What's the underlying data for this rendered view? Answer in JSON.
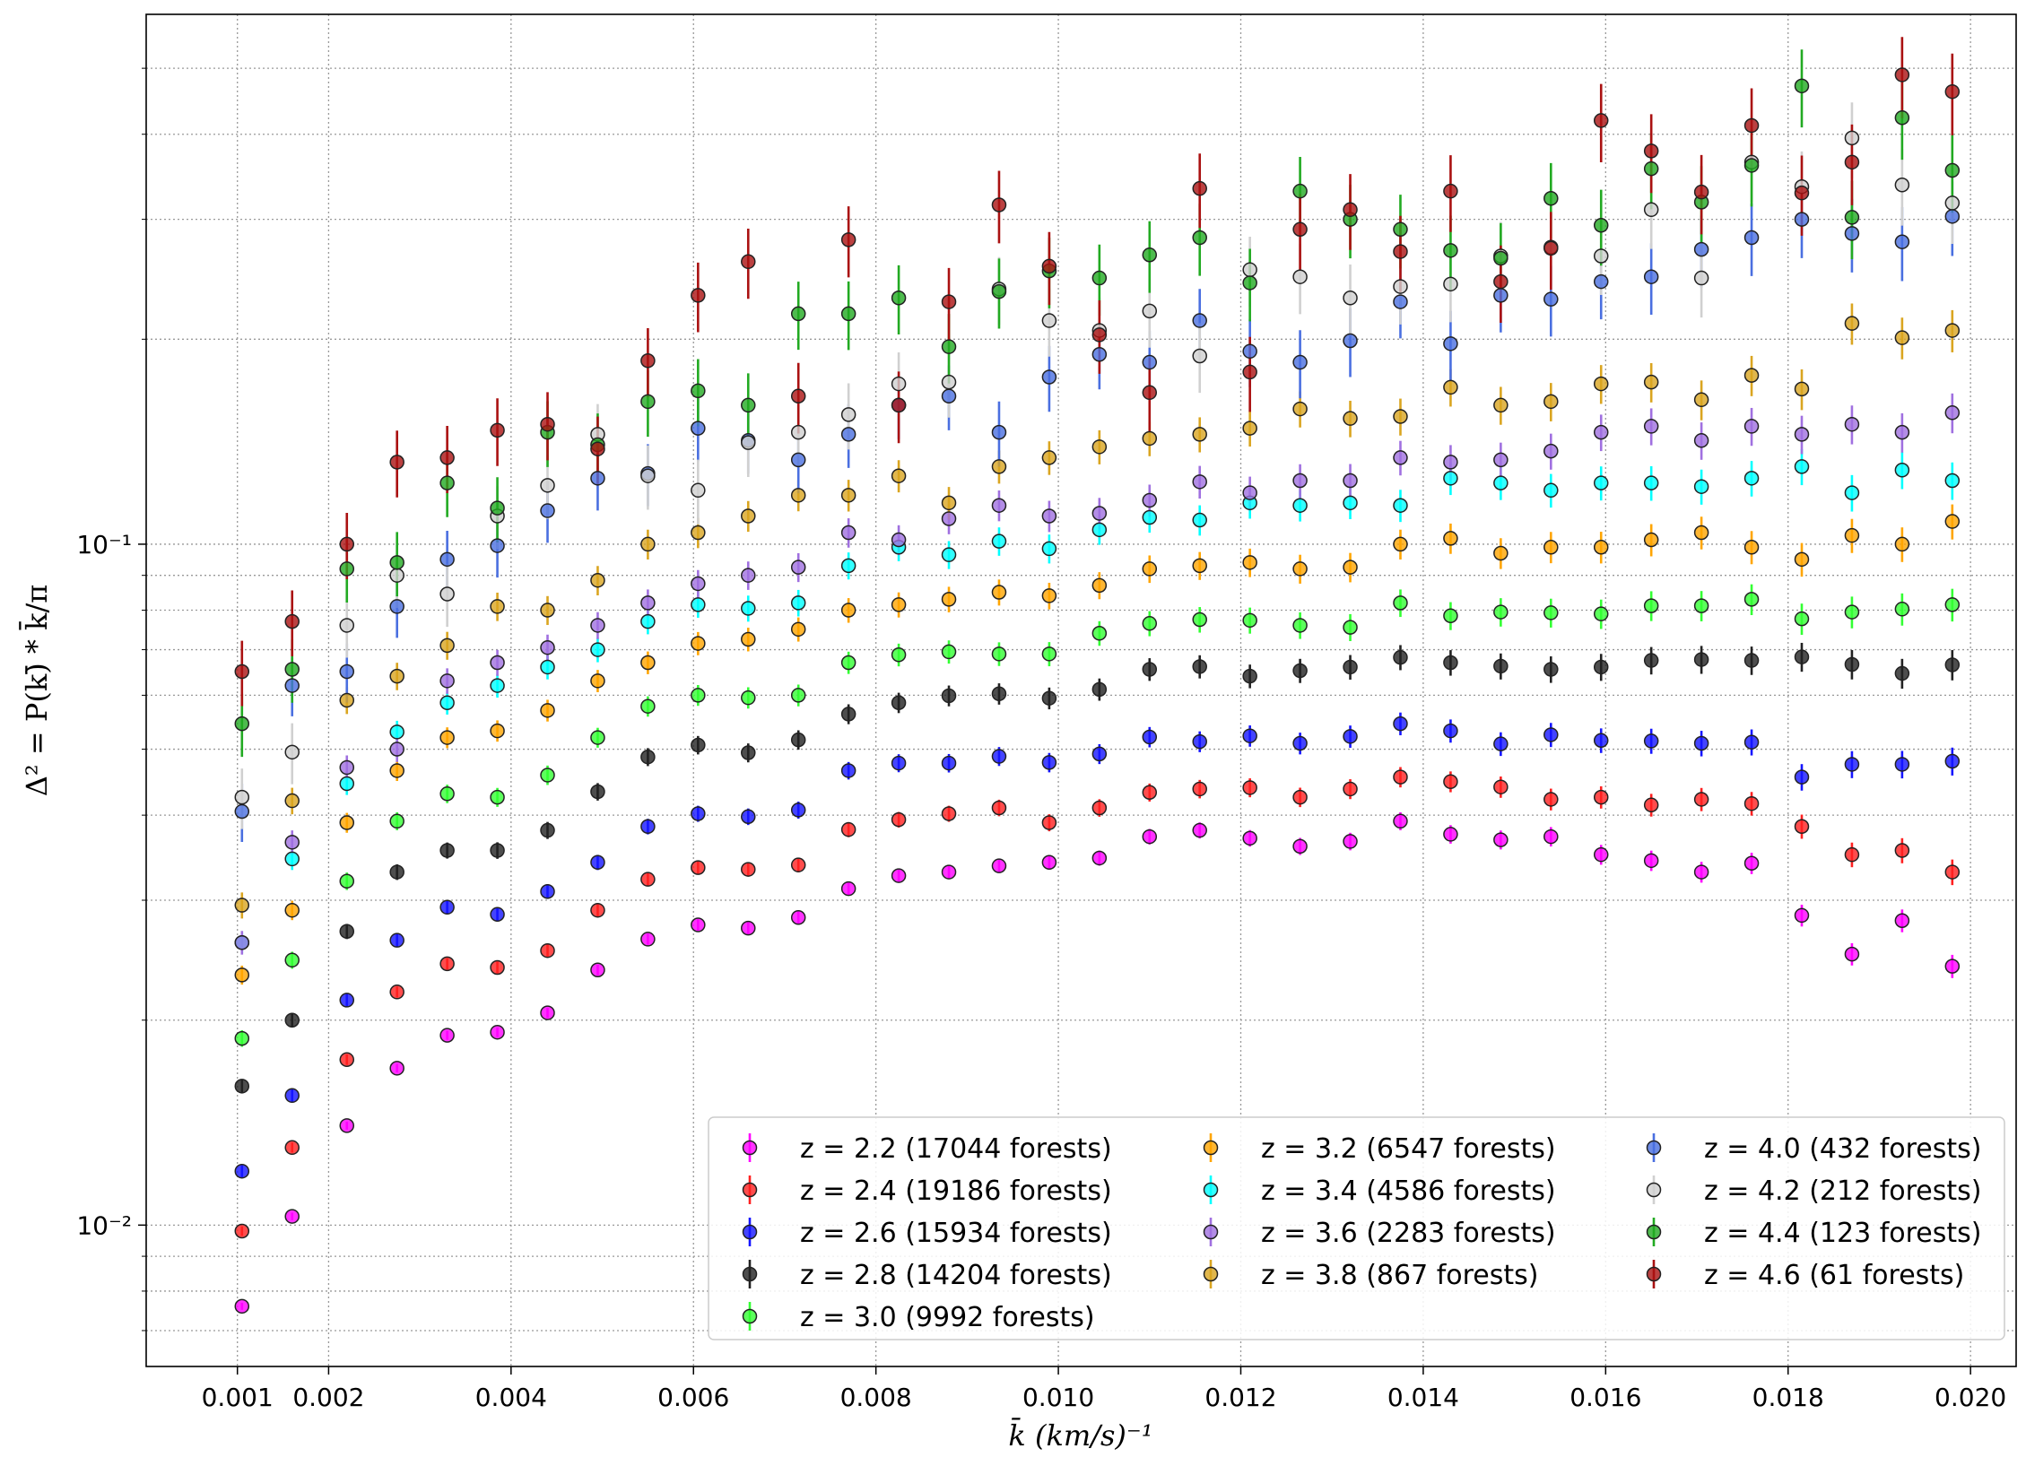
{
  "chart_data": {
    "type": "scatter",
    "xlabel": "k̄ (km/s)⁻¹",
    "ylabel": "Δ² = P(k)̄ * k̄/π",
    "x_scale": "linear",
    "y_scale": "log",
    "xlim": [
      0.0,
      0.0205
    ],
    "ylim": [
      0.0062,
      0.6
    ],
    "x_ticks": [
      0.001,
      0.002,
      0.004,
      0.006,
      0.008,
      0.01,
      0.012,
      0.014,
      0.016,
      0.018,
      0.02
    ],
    "x_tick_labels": [
      "0.001",
      "0.002",
      "0.004",
      "0.006",
      "0.008",
      "0.010",
      "0.012",
      "0.014",
      "0.016",
      "0.018",
      "0.020"
    ],
    "y_major_ticks": [
      0.01,
      0.1
    ],
    "y_tick_labels": [
      "10⁻²",
      "10⁻¹"
    ],
    "grid": true,
    "legend_position": "lower-right",
    "x": [
      0.00105,
      0.0016,
      0.0022,
      0.00275,
      0.0033,
      0.00385,
      0.0044,
      0.00495,
      0.0055,
      0.00605,
      0.0066,
      0.00715,
      0.0077,
      0.00825,
      0.0088,
      0.00935,
      0.0099,
      0.01045,
      0.011,
      0.01155,
      0.0121,
      0.01265,
      0.0132,
      0.01375,
      0.0143,
      0.01485,
      0.0154,
      0.01595,
      0.0165,
      0.01705,
      0.0176,
      0.01815,
      0.0187,
      0.01925,
      0.0198
    ],
    "series": [
      {
        "name": "z = 2.2 (17044 forests)",
        "color": "#ff00ff",
        "values": [
          0.0076,
          0.0103,
          0.014,
          0.017,
          0.019,
          0.0192,
          0.0205,
          0.0237,
          0.0263,
          0.0276,
          0.0273,
          0.0283,
          0.0312,
          0.0326,
          0.033,
          0.0337,
          0.0341,
          0.0346,
          0.0372,
          0.038,
          0.037,
          0.036,
          0.0366,
          0.0392,
          0.0375,
          0.0368,
          0.0372,
          0.035,
          0.0343,
          0.033,
          0.034,
          0.0285,
          0.025,
          0.028,
          0.024
        ]
      },
      {
        "name": "z = 2.4 (19186 forests)",
        "color": "#ff2020",
        "values": [
          0.0098,
          0.013,
          0.0175,
          0.022,
          0.0242,
          0.0239,
          0.0253,
          0.029,
          0.0322,
          0.0335,
          0.0333,
          0.0338,
          0.0381,
          0.0394,
          0.0402,
          0.041,
          0.039,
          0.041,
          0.0432,
          0.0437,
          0.0439,
          0.0425,
          0.0437,
          0.0455,
          0.0448,
          0.044,
          0.0422,
          0.0425,
          0.0414,
          0.0422,
          0.0416,
          0.0385,
          0.035,
          0.0355,
          0.033
        ]
      },
      {
        "name": "z = 2.6 (15934 forests)",
        "color": "#1515ff",
        "values": [
          0.012,
          0.0155,
          0.0214,
          0.0262,
          0.0293,
          0.0286,
          0.0309,
          0.0341,
          0.0385,
          0.0402,
          0.0398,
          0.0407,
          0.0465,
          0.0477,
          0.0477,
          0.0488,
          0.0478,
          0.0492,
          0.0521,
          0.0513,
          0.0523,
          0.051,
          0.0522,
          0.0545,
          0.0532,
          0.0509,
          0.0525,
          0.0515,
          0.0514,
          0.051,
          0.0512,
          0.0455,
          0.0475,
          0.0475,
          0.048
        ]
      },
      {
        "name": "z = 2.8 (14204 forests)",
        "color": "#222222",
        "values": [
          0.016,
          0.02,
          0.027,
          0.033,
          0.0355,
          0.0355,
          0.038,
          0.0433,
          0.0487,
          0.0507,
          0.0494,
          0.0516,
          0.0563,
          0.0585,
          0.0599,
          0.0603,
          0.0594,
          0.0612,
          0.0655,
          0.0661,
          0.064,
          0.0652,
          0.066,
          0.0682,
          0.067,
          0.0662,
          0.0655,
          0.066,
          0.0675,
          0.0677,
          0.0675,
          0.0683,
          0.0666,
          0.0646,
          0.0665
        ]
      },
      {
        "name": "z = 3.0 (9992 forests)",
        "color": "#33ff33",
        "values": [
          0.0188,
          0.0245,
          0.032,
          0.0392,
          0.043,
          0.0425,
          0.0458,
          0.052,
          0.0578,
          0.06,
          0.0595,
          0.06,
          0.067,
          0.0688,
          0.0695,
          0.069,
          0.069,
          0.074,
          0.0765,
          0.0775,
          0.0773,
          0.076,
          0.0755,
          0.082,
          0.0785,
          0.0795,
          0.0793,
          0.079,
          0.0812,
          0.0812,
          0.083,
          0.0777,
          0.0795,
          0.0803,
          0.0815
        ]
      },
      {
        "name": "z = 3.2 (6547 forests)",
        "color": "#ffa500",
        "values": [
          0.0233,
          0.029,
          0.039,
          0.0465,
          0.052,
          0.0532,
          0.057,
          0.063,
          0.067,
          0.0715,
          0.0725,
          0.075,
          0.08,
          0.0815,
          0.083,
          0.085,
          0.084,
          0.087,
          0.092,
          0.093,
          0.094,
          0.092,
          0.0925,
          0.1,
          0.102,
          0.097,
          0.099,
          0.099,
          0.1015,
          0.104,
          0.099,
          0.095,
          0.103,
          0.1,
          0.108
        ]
      },
      {
        "name": "z = 3.4 (4586 forests)",
        "color": "#00ffff",
        "values": [
          0.026,
          0.0345,
          0.0445,
          0.053,
          0.0585,
          0.062,
          0.066,
          0.07,
          0.077,
          0.0815,
          0.0805,
          0.082,
          0.093,
          0.099,
          0.0965,
          0.101,
          0.0985,
          0.105,
          0.1095,
          0.1085,
          0.115,
          0.114,
          0.115,
          0.114,
          0.125,
          0.123,
          0.12,
          0.123,
          0.123,
          0.1215,
          0.125,
          0.13,
          0.119,
          0.1285,
          0.124
        ]
      },
      {
        "name": "z = 3.6 (2283 forests)",
        "color": "#a070e0",
        "values": [
          0.026,
          0.0365,
          0.047,
          0.05,
          0.063,
          0.067,
          0.0705,
          0.076,
          0.082,
          0.0875,
          0.09,
          0.0925,
          0.104,
          0.1015,
          0.109,
          0.114,
          0.11,
          0.111,
          0.116,
          0.1235,
          0.119,
          0.124,
          0.124,
          0.134,
          0.132,
          0.133,
          0.137,
          0.146,
          0.149,
          0.142,
          0.149,
          0.145,
          0.15,
          0.146,
          0.156
        ]
      },
      {
        "name": "z = 3.8 (867 forests)",
        "color": "#daa520",
        "values": [
          0.0295,
          0.042,
          0.059,
          0.064,
          0.071,
          0.081,
          0.08,
          0.0885,
          0.1,
          0.104,
          0.11,
          0.118,
          0.118,
          0.126,
          0.115,
          0.13,
          0.134,
          0.139,
          0.143,
          0.145,
          0.148,
          0.158,
          0.153,
          0.154,
          0.17,
          0.16,
          0.162,
          0.172,
          0.173,
          0.163,
          0.177,
          0.169,
          0.211,
          0.201,
          0.206
        ]
      },
      {
        "name": "z = 4.0 (432 forests)",
        "color": "#4a6fe0",
        "values": [
          0.0405,
          0.062,
          0.065,
          0.081,
          0.095,
          0.0995,
          0.112,
          0.125,
          0.127,
          0.148,
          0.142,
          0.133,
          0.145,
          0.16,
          0.165,
          0.146,
          0.176,
          0.19,
          0.185,
          0.213,
          0.192,
          0.185,
          0.199,
          0.227,
          0.197,
          0.232,
          0.229,
          0.243,
          0.247,
          0.271,
          0.282,
          0.3,
          0.286,
          0.278,
          0.303
        ]
      },
      {
        "name": "z = 4.2 (212 forests)",
        "color": "#d0d0d0",
        "values": [
          0.0425,
          0.0495,
          0.076,
          0.09,
          0.0845,
          0.11,
          0.122,
          0.145,
          0.126,
          0.12,
          0.141,
          0.146,
          0.155,
          0.172,
          0.173,
          0.237,
          0.213,
          0.206,
          0.22,
          0.189,
          0.253,
          0.247,
          0.23,
          0.239,
          0.241,
          0.265,
          0.273,
          0.265,
          0.31,
          0.246,
          0.364,
          0.335,
          0.395,
          0.337,
          0.317
        ]
      },
      {
        "name": "z = 4.4 (123 forests)",
        "color": "#22aa22",
        "values": [
          0.0545,
          0.0655,
          0.092,
          0.094,
          0.123,
          0.113,
          0.146,
          0.14,
          0.162,
          0.168,
          0.16,
          0.218,
          0.218,
          0.23,
          0.195,
          0.235,
          0.252,
          0.246,
          0.266,
          0.282,
          0.242,
          0.33,
          0.3,
          0.29,
          0.27,
          0.263,
          0.322,
          0.294,
          0.356,
          0.318,
          0.36,
          0.471,
          0.302,
          0.423,
          0.354
        ]
      },
      {
        "name": "z = 4.6 (61 forests)",
        "color": "#aa1111",
        "values": [
          0.065,
          0.077,
          0.1,
          0.132,
          0.134,
          0.147,
          0.15,
          0.138,
          0.186,
          0.232,
          0.26,
          0.165,
          0.28,
          0.16,
          0.227,
          0.315,
          0.256,
          0.203,
          0.167,
          0.333,
          0.179,
          0.29,
          0.31,
          0.269,
          0.33,
          0.243,
          0.272,
          0.419,
          0.378,
          0.329,
          0.412,
          0.328,
          0.364,
          0.489,
          0.462
        ]
      }
    ]
  }
}
